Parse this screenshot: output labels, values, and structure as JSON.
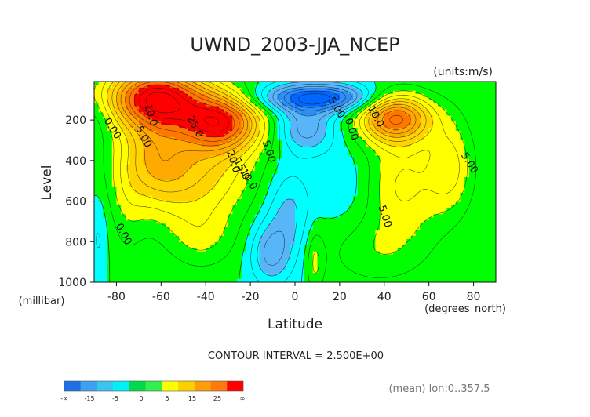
{
  "chart_data": {
    "type": "heatmap",
    "title": "UWND_2003-JJA_NCEP",
    "units_label": "(units:m/s)",
    "xlabel": "Latitude",
    "ylabel": "Level",
    "x_unit_label": "(degrees_north)",
    "y_unit_label": "(millibar)",
    "xlim": [
      -90,
      90
    ],
    "ylim": [
      1000,
      10
    ],
    "x_ticks": [
      "-80",
      "-60",
      "-40",
      "-20",
      "0",
      "20",
      "40",
      "60",
      "80"
    ],
    "x_tick_values": [
      -80,
      -60,
      -40,
      -20,
      0,
      20,
      40,
      60,
      80
    ],
    "y_ticks": [
      "200",
      "400",
      "600",
      "800",
      "1000"
    ],
    "y_tick_values": [
      200,
      400,
      600,
      800,
      1000
    ],
    "contour_interval_label": "CONTOUR INTERVAL = 2.500E+00",
    "footnote": "(mean) lon:0..357.5",
    "colorbar": {
      "colors": [
        "#1f6fe6",
        "#3f9ff0",
        "#39c5f0",
        "#00f0f8",
        "#00d94a",
        "#33ee4d",
        "#ffff00",
        "#ffd000",
        "#ff9c0a",
        "#ff7a0a",
        "#ff0000"
      ],
      "labels": [
        "-∞",
        "-15",
        "-5",
        "0",
        "5",
        "15",
        "25",
        "∞"
      ]
    },
    "color_scale": {
      "breaks": [
        -15,
        -10,
        -5,
        0,
        5,
        10,
        15,
        20,
        25
      ],
      "colors": [
        "#0066ff",
        "#2f8ef5",
        "#58b6f8",
        "#00ffff",
        "#00ff00",
        "#ffff00",
        "#ffd400",
        "#ffaa00",
        "#ff7700",
        "#ff0000"
      ]
    },
    "contour_labels": [
      {
        "text": "10.0",
        "x": -66,
        "y": 180
      },
      {
        "text": "5.00",
        "x": -69,
        "y": 290
      },
      {
        "text": "0.00",
        "x": -83,
        "y": 250
      },
      {
        "text": "20.0",
        "x": -29,
        "y": 410
      },
      {
        "text": "15.0",
        "x": -25,
        "y": 450
      },
      {
        "text": "10.0",
        "x": -22,
        "y": 500
      },
      {
        "text": "5.00",
        "x": -13,
        "y": 360
      },
      {
        "text": "25.0",
        "x": -46,
        "y": 240
      },
      {
        "text": "-5.00",
        "x": 17,
        "y": 140
      },
      {
        "text": "0.00",
        "x": 24,
        "y": 250
      },
      {
        "text": "10.0",
        "x": 35,
        "y": 190
      },
      {
        "text": "5.00",
        "x": 77,
        "y": 420
      },
      {
        "text": "5.00",
        "x": 39,
        "y": 680
      },
      {
        "text": "0.00",
        "x": -78,
        "y": 770
      }
    ],
    "source": "NCEP",
    "season": "JJA 2003"
  }
}
